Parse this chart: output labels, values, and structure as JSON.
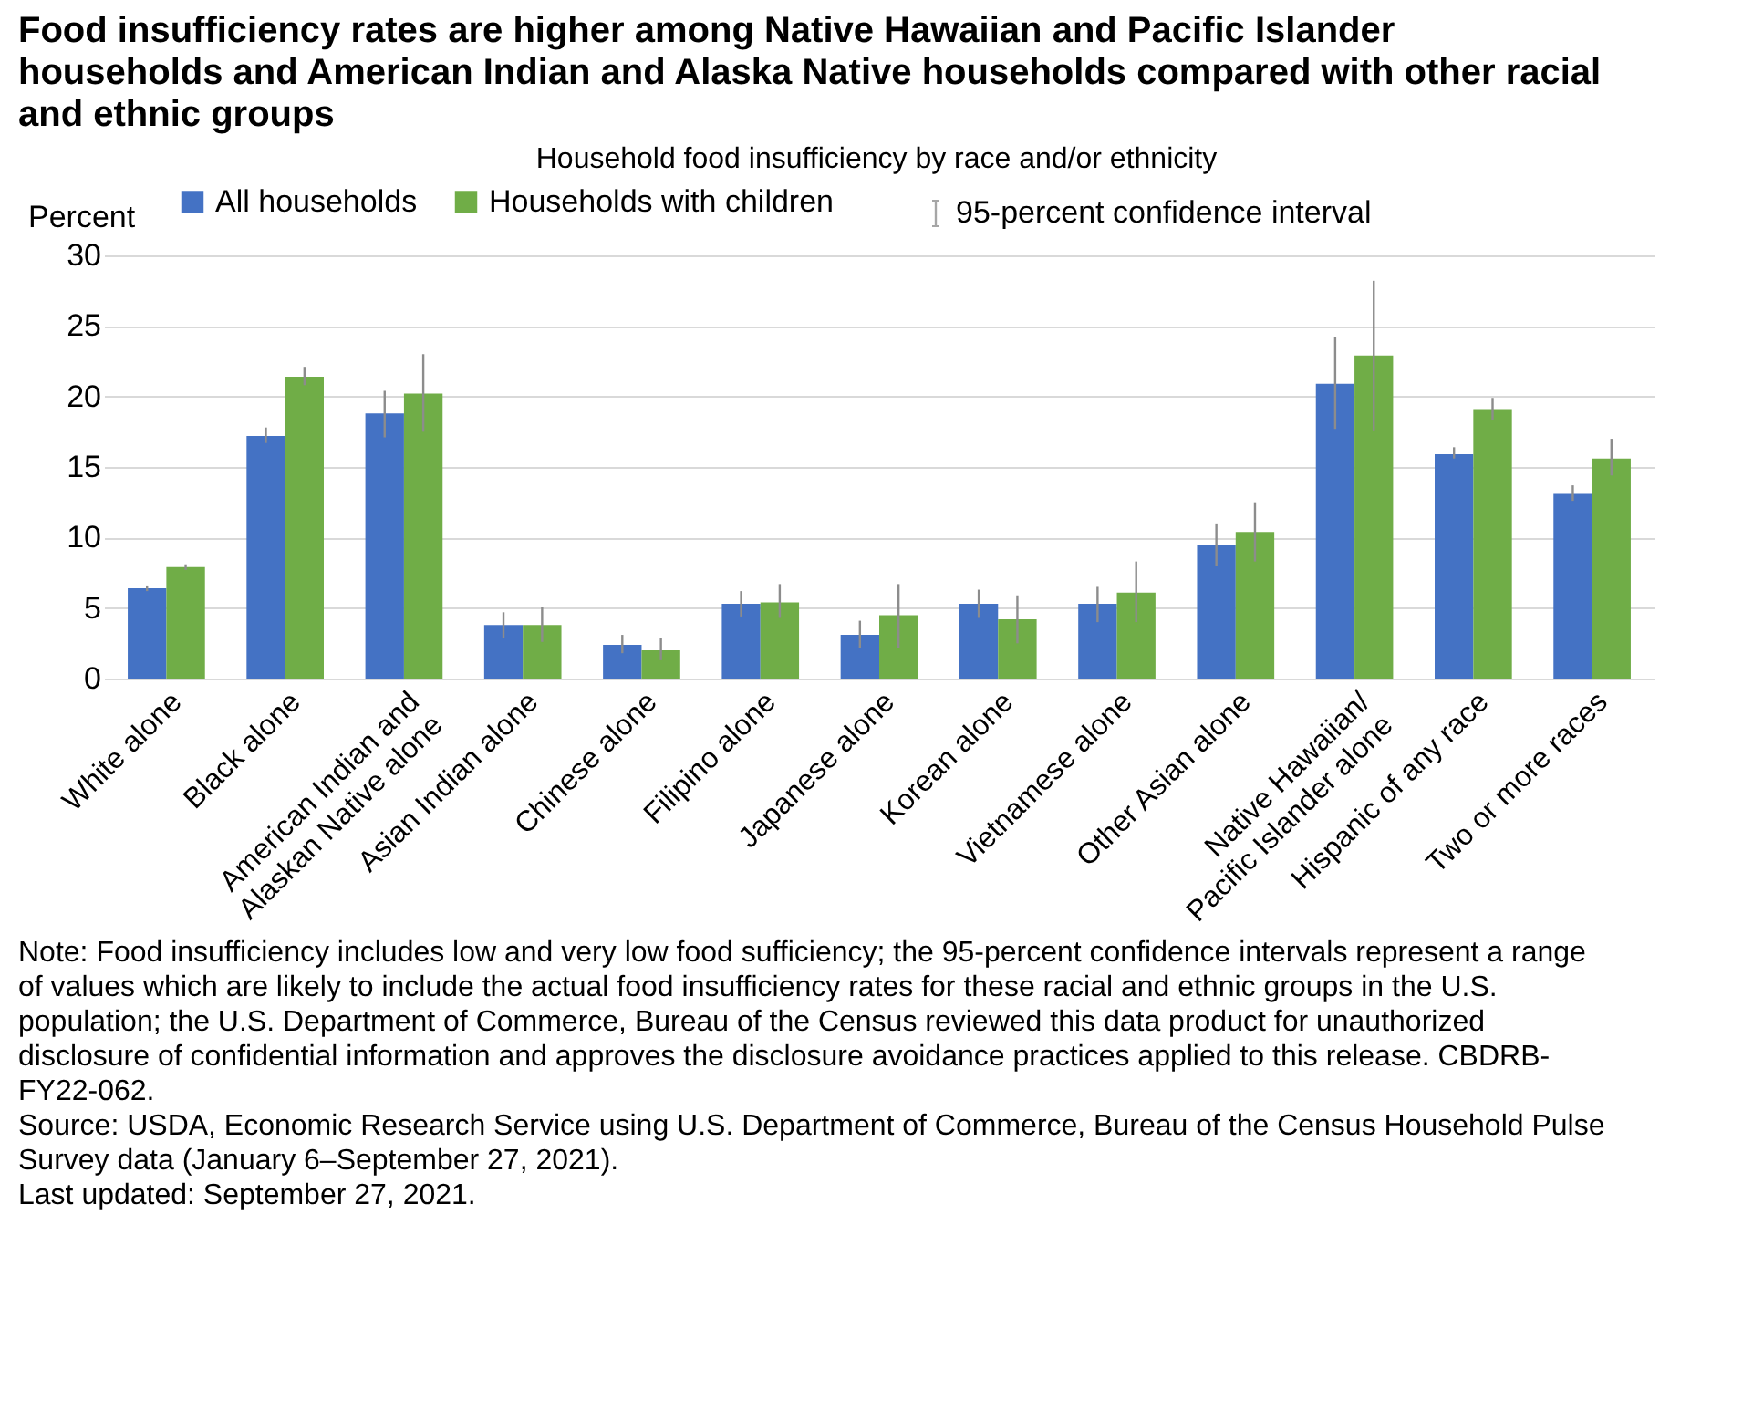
{
  "chart_data": {
    "type": "bar",
    "title": "Food insufficiency rates are higher among Native Hawaiian and Pacific Islander households and American Indian and Alaska Native households compared with other racial and ethnic groups",
    "subtitle": "Household food insufficiency by race and/or ethnicity",
    "ylabel": "Percent",
    "categories": [
      "White alone",
      "Black alone",
      "American Indian and Alaskan Native alone",
      "Asian Indian alone",
      "Chinese alone",
      "Filipino alone",
      "Japanese alone",
      "Korean alone",
      "Vietnamese alone",
      "Other Asian alone",
      "Native Hawaiian/Pacific Islander alone",
      "Hispanic of any race",
      "Two or more races"
    ],
    "series": [
      {
        "name": "All households",
        "color": "#4472c4",
        "values": [
          6.4,
          17.2,
          18.8,
          3.8,
          2.4,
          5.3,
          3.1,
          5.3,
          5.3,
          9.5,
          20.9,
          15.9,
          13.1
        ],
        "errors": [
          [
            6.2,
            6.6
          ],
          [
            16.7,
            17.8
          ],
          [
            17.1,
            20.4
          ],
          [
            2.9,
            4.7
          ],
          [
            1.8,
            3.1
          ],
          [
            4.4,
            6.2
          ],
          [
            2.2,
            4.1
          ],
          [
            4.3,
            6.3
          ],
          [
            4.0,
            6.5
          ],
          [
            8.0,
            11.0
          ],
          [
            17.7,
            24.2
          ],
          [
            15.6,
            16.4
          ],
          [
            12.6,
            13.7
          ]
        ]
      },
      {
        "name": "Households with children",
        "color": "#70ad47",
        "values": [
          7.9,
          21.4,
          20.2,
          3.8,
          2.0,
          5.4,
          4.5,
          4.2,
          6.1,
          10.4,
          22.9,
          19.1,
          15.6
        ],
        "errors": [
          [
            7.7,
            8.1
          ],
          [
            20.8,
            22.1
          ],
          [
            17.5,
            23.0
          ],
          [
            2.6,
            5.1
          ],
          [
            1.3,
            2.9
          ],
          [
            4.3,
            6.7
          ],
          [
            2.2,
            6.7
          ],
          [
            2.5,
            5.9
          ],
          [
            4.0,
            8.3
          ],
          [
            8.3,
            12.5
          ],
          [
            17.6,
            28.2
          ],
          [
            18.3,
            19.9
          ],
          [
            14.4,
            17.0
          ]
        ]
      }
    ],
    "ylim": [
      0,
      30
    ],
    "yticks": [
      0,
      5,
      10,
      15,
      20,
      25,
      30
    ],
    "grid": "y",
    "legend": "top",
    "annotations": [
      "95-percent confidence interval",
      "Note: Food insufficiency includes low and very low food sufficiency; the 95-percent confidence intervals represent a range of values which are likely to include the actual food insufficiency rates for these racial and ethnic groups in the U.S. population; the U.S. Department of Commerce, Bureau of the Census reviewed this data product for unauthorized disclosure of confidential information and approves the disclosure avoidance practices applied to this release. CBDRB-FY22-062.",
      "Source: USDA, Economic Research Service using U.S. Department of Commerce, Bureau of the Census Household Pulse Survey data (January 6–September 27, 2021).",
      "Last updated: September 27, 2021."
    ]
  }
}
